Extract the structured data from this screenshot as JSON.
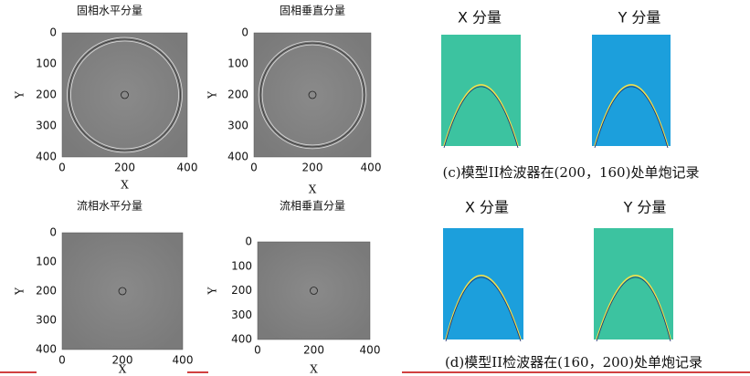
{
  "panels": [
    {
      "title": "固相水平分量",
      "xlabel": "X",
      "ylabel": "Y",
      "xticks": [
        0,
        200,
        400
      ],
      "yticks": [
        0,
        100,
        200,
        300,
        400
      ]
    },
    {
      "title": "固相垂直分量",
      "xlabel": "X",
      "ylabel": "Y",
      "xticks": [
        0,
        200,
        400
      ],
      "yticks": [
        0,
        100,
        200,
        300,
        400
      ]
    },
    {
      "title": "流相水平分量",
      "xlabel": "X",
      "ylabel": "Y",
      "xticks": [
        0,
        200,
        400
      ],
      "yticks": [
        0,
        100,
        200,
        300,
        400
      ]
    },
    {
      "title": "流相垂直分量",
      "xlabel": "X",
      "ylabel": "Y",
      "xticks": [
        0,
        200,
        400
      ],
      "yticks": [
        0,
        100,
        200,
        300,
        400
      ]
    }
  ],
  "records": [
    {
      "titles": [
        "X 分量",
        "Y 分量"
      ],
      "caption": "(c)模型II检波器在(200，160)处单炮记录"
    },
    {
      "titles": [
        "X 分量",
        "Y 分量"
      ],
      "caption": "(d)模型II检波器在(160，200)处单炮记录"
    }
  ]
}
